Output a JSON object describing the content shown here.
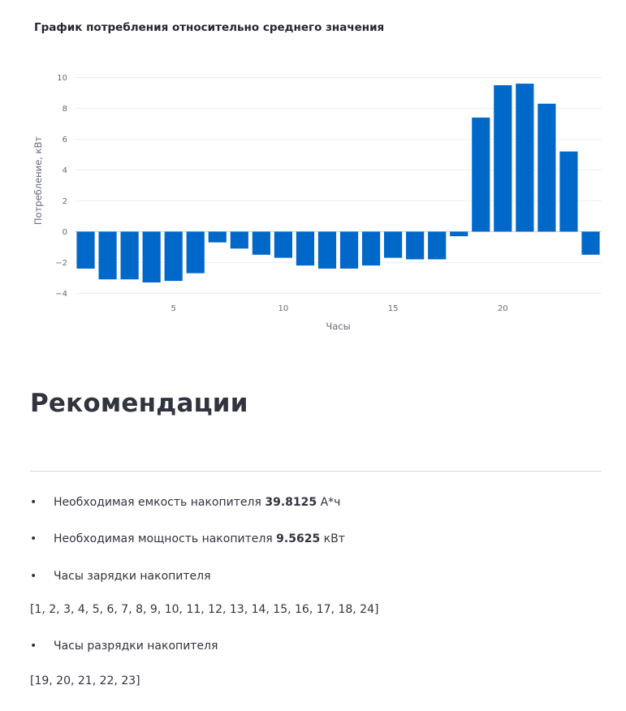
{
  "chart_data": {
    "type": "bar",
    "title": "График потребления относительно среднего значения",
    "xlabel": "Часы",
    "ylabel": "Потребление, кВт",
    "x": [
      1,
      2,
      3,
      4,
      5,
      6,
      7,
      8,
      9,
      10,
      11,
      12,
      13,
      14,
      15,
      16,
      17,
      18,
      19,
      20,
      21,
      22,
      23,
      24
    ],
    "values": [
      -2.4,
      -3.1,
      -3.1,
      -3.3,
      -3.2,
      -2.7,
      -0.7,
      -1.1,
      -1.5,
      -1.7,
      -2.2,
      -2.4,
      -2.4,
      -2.2,
      -1.7,
      -1.8,
      -1.8,
      -0.3,
      7.4,
      9.5,
      9.6,
      8.3,
      5.2,
      -1.5
    ],
    "xticks": [
      5,
      10,
      15,
      20
    ],
    "yticks": [
      -4,
      -2,
      0,
      2,
      4,
      6,
      8,
      10
    ],
    "xlim": [
      0.5,
      24.5
    ],
    "ylim": [
      -4.3,
      10.5
    ],
    "grid": true,
    "bar_color": "#0068c9"
  },
  "recommendations": {
    "heading": "Рекомендации",
    "capacity_label": "Необходимая емкость накопителя",
    "capacity_value": "39.8125",
    "capacity_unit": "А*ч",
    "power_label": "Необходимая мощность накопителя",
    "power_value": "9.5625",
    "power_unit": "кВт",
    "charge_label": "Часы зарядки накопителя",
    "charge_hours": "[1, 2, 3, 4, 5, 6, 7, 8, 9, 10, 11, 12, 13, 14, 15, 16, 17, 18, 24]",
    "discharge_label": "Часы разрядки накопителя",
    "discharge_hours": "[19, 20, 21, 22, 23]"
  }
}
